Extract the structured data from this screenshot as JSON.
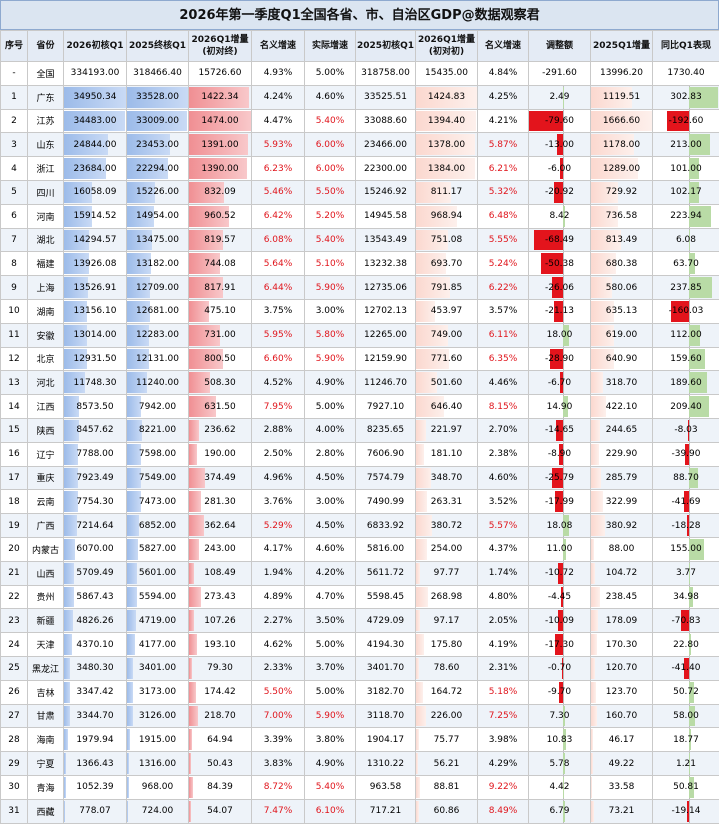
{
  "title": "2026年第一季度Q1全国各省、市、自治区GDP@数据观察君",
  "headers": [
    "序号",
    "省份",
    "2026初核Q1",
    "2025终核Q1",
    "2026Q1增量\n(初对终)",
    "名义增速",
    "实际增速",
    "2025初核Q1",
    "2026Q1增量\n(初对初)",
    "名义增速",
    "调整额",
    "2025Q1增量",
    "同比Q1表现"
  ],
  "rows": [
    [
      "-",
      "全国",
      "334193.00",
      "318466.40",
      "15726.60",
      "4.93%",
      "5.00%",
      "318758.00",
      "15435.00",
      "4.84%",
      "-291.60",
      "13996.20",
      "1730.40"
    ],
    [
      "1",
      "广东",
      "34950.34",
      "33528.00",
      "1422.34",
      "4.24%",
      "4.60%",
      "33525.51",
      "1424.83",
      "4.25%",
      "2.49",
      "1119.51",
      "302.83"
    ],
    [
      "2",
      "江苏",
      "34483.00",
      "33009.00",
      "1474.00",
      "4.47%",
      "5.40%",
      "33088.60",
      "1394.40",
      "4.21%",
      "-79.60",
      "1666.60",
      "-192.60"
    ],
    [
      "3",
      "山东",
      "24844.00",
      "23453.00",
      "1391.00",
      "5.93%",
      "6.00%",
      "23466.00",
      "1378.00",
      "5.87%",
      "-13.00",
      "1178.00",
      "213.00"
    ],
    [
      "4",
      "浙江",
      "23684.00",
      "22294.00",
      "1390.00",
      "6.23%",
      "6.00%",
      "22300.00",
      "1384.00",
      "6.21%",
      "-6.00",
      "1289.00",
      "101.00"
    ],
    [
      "5",
      "四川",
      "16058.09",
      "15226.00",
      "832.09",
      "5.46%",
      "5.50%",
      "15246.92",
      "811.17",
      "5.32%",
      "-20.92",
      "729.92",
      "102.17"
    ],
    [
      "6",
      "河南",
      "15914.52",
      "14954.00",
      "960.52",
      "6.42%",
      "5.20%",
      "14945.58",
      "968.94",
      "6.48%",
      "8.42",
      "736.58",
      "223.94"
    ],
    [
      "7",
      "湖北",
      "14294.57",
      "13475.00",
      "819.57",
      "6.08%",
      "5.40%",
      "13543.49",
      "751.08",
      "5.55%",
      "-68.49",
      "813.49",
      "6.08"
    ],
    [
      "8",
      "福建",
      "13926.08",
      "13182.00",
      "744.08",
      "5.64%",
      "5.10%",
      "13232.38",
      "693.70",
      "5.24%",
      "-50.38",
      "680.38",
      "63.70"
    ],
    [
      "9",
      "上海",
      "13526.91",
      "12709.00",
      "817.91",
      "6.44%",
      "5.90%",
      "12735.06",
      "791.85",
      "6.22%",
      "-26.06",
      "580.06",
      "237.85"
    ],
    [
      "10",
      "湖南",
      "13156.10",
      "12681.00",
      "475.10",
      "3.75%",
      "3.00%",
      "12702.13",
      "453.97",
      "3.57%",
      "-21.13",
      "635.13",
      "-160.03"
    ],
    [
      "11",
      "安徽",
      "13014.00",
      "12283.00",
      "731.00",
      "5.95%",
      "5.80%",
      "12265.00",
      "749.00",
      "6.11%",
      "18.00",
      "619.00",
      "112.00"
    ],
    [
      "12",
      "北京",
      "12931.50",
      "12131.00",
      "800.50",
      "6.60%",
      "5.90%",
      "12159.90",
      "771.60",
      "6.35%",
      "-28.90",
      "640.90",
      "159.60"
    ],
    [
      "13",
      "河北",
      "11748.30",
      "11240.00",
      "508.30",
      "4.52%",
      "4.90%",
      "11246.70",
      "501.60",
      "4.46%",
      "-6.70",
      "318.70",
      "189.60"
    ],
    [
      "14",
      "江西",
      "8573.50",
      "7942.00",
      "631.50",
      "7.95%",
      "5.00%",
      "7927.10",
      "646.40",
      "8.15%",
      "14.90",
      "422.10",
      "209.40"
    ],
    [
      "15",
      "陕西",
      "8457.62",
      "8221.00",
      "236.62",
      "2.88%",
      "4.00%",
      "8235.65",
      "221.97",
      "2.70%",
      "-14.65",
      "244.65",
      "-8.03"
    ],
    [
      "16",
      "辽宁",
      "7788.00",
      "7598.00",
      "190.00",
      "2.50%",
      "2.80%",
      "7606.90",
      "181.10",
      "2.38%",
      "-8.90",
      "229.90",
      "-39.90"
    ],
    [
      "17",
      "重庆",
      "7923.49",
      "7549.00",
      "374.49",
      "4.96%",
      "4.50%",
      "7574.79",
      "348.70",
      "4.60%",
      "-25.79",
      "285.79",
      "88.70"
    ],
    [
      "18",
      "云南",
      "7754.30",
      "7473.00",
      "281.30",
      "3.76%",
      "3.00%",
      "7490.99",
      "263.31",
      "3.52%",
      "-17.99",
      "322.99",
      "-41.69"
    ],
    [
      "19",
      "广西",
      "7214.64",
      "6852.00",
      "362.64",
      "5.29%",
      "4.50%",
      "6833.92",
      "380.72",
      "5.57%",
      "18.08",
      "380.92",
      "-18.28"
    ],
    [
      "20",
      "内蒙古",
      "6070.00",
      "5827.00",
      "243.00",
      "4.17%",
      "4.60%",
      "5816.00",
      "254.00",
      "4.37%",
      "11.00",
      "88.00",
      "155.00"
    ],
    [
      "21",
      "山西",
      "5709.49",
      "5601.00",
      "108.49",
      "1.94%",
      "4.20%",
      "5611.72",
      "97.77",
      "1.74%",
      "-10.72",
      "104.72",
      "3.77"
    ],
    [
      "22",
      "贵州",
      "5867.43",
      "5594.00",
      "273.43",
      "4.89%",
      "4.70%",
      "5598.45",
      "268.98",
      "4.80%",
      "-4.45",
      "238.45",
      "34.98"
    ],
    [
      "23",
      "新疆",
      "4826.26",
      "4719.00",
      "107.26",
      "2.27%",
      "3.50%",
      "4729.09",
      "97.17",
      "2.05%",
      "-10.09",
      "178.09",
      "-70.83"
    ],
    [
      "24",
      "天津",
      "4370.10",
      "4177.00",
      "193.10",
      "4.62%",
      "5.00%",
      "4194.30",
      "175.80",
      "4.19%",
      "-17.30",
      "170.30",
      "22.80"
    ],
    [
      "25",
      "黑龙江",
      "3480.30",
      "3401.00",
      "79.30",
      "2.33%",
      "3.70%",
      "3401.70",
      "78.60",
      "2.31%",
      "-0.70",
      "120.70",
      "-41.40"
    ],
    [
      "26",
      "吉林",
      "3347.42",
      "3173.00",
      "174.42",
      "5.50%",
      "5.00%",
      "3182.70",
      "164.72",
      "5.18%",
      "-9.70",
      "123.70",
      "50.72"
    ],
    [
      "27",
      "甘肃",
      "3344.70",
      "3126.00",
      "218.70",
      "7.00%",
      "5.90%",
      "3118.70",
      "226.00",
      "7.25%",
      "7.30",
      "160.70",
      "58.00"
    ],
    [
      "28",
      "海南",
      "1979.94",
      "1915.00",
      "64.94",
      "3.39%",
      "3.80%",
      "1904.17",
      "75.77",
      "3.98%",
      "10.83",
      "46.17",
      "18.77"
    ],
    [
      "29",
      "宁夏",
      "1366.43",
      "1316.00",
      "50.43",
      "3.83%",
      "4.90%",
      "1310.22",
      "56.21",
      "4.29%",
      "5.78",
      "49.22",
      "1.21"
    ],
    [
      "30",
      "青海",
      "1052.39",
      "968.00",
      "84.39",
      "8.72%",
      "5.40%",
      "963.58",
      "88.81",
      "9.22%",
      "4.42",
      "33.58",
      "50.81"
    ],
    [
      "31",
      "西藏",
      "778.07",
      "724.00",
      "54.07",
      "7.47%",
      "6.10%",
      "717.21",
      "60.86",
      "8.49%",
      "6.79",
      "73.21",
      "-19.14"
    ]
  ],
  "colors": {
    "blue_bar": "#9cbbe9",
    "red_bar": "#f08f93",
    "red_text": "#e0141b",
    "neg_bar": "#e3141c",
    "pos_bar": "#b9dba6"
  }
}
